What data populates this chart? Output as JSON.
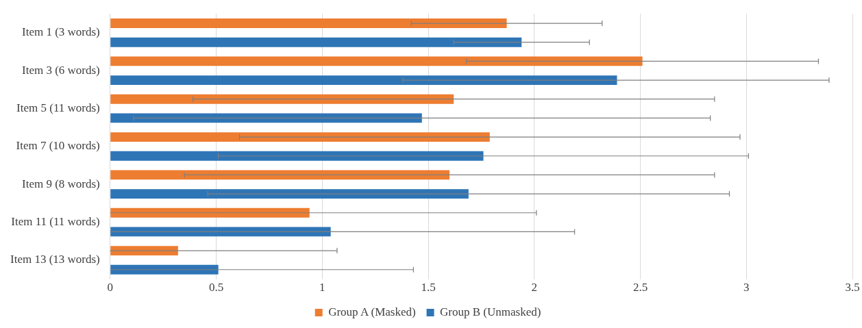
{
  "chart_data": {
    "type": "bar",
    "orientation": "horizontal",
    "categories": [
      "Item 1 (3 words)",
      "Item 3 (6 words)",
      "Item 5 (11 words)",
      "Item 7 (10 words)",
      "Item 9 (8 words)",
      "Item 11 (11 words)",
      "Item 13 (13 words)"
    ],
    "series": [
      {
        "name": "Group A (Masked)",
        "color": "#ed7d31",
        "values": [
          1.87,
          2.51,
          1.62,
          1.79,
          1.6,
          0.94,
          0.32
        ],
        "errors": [
          [
            1.42,
            2.32
          ],
          [
            1.68,
            3.34
          ],
          [
            0.39,
            2.85
          ],
          [
            0.61,
            2.97
          ],
          [
            0.35,
            2.85
          ],
          [
            0,
            2.01
          ],
          [
            0,
            1.07
          ]
        ]
      },
      {
        "name": "Group B (Unmasked)",
        "color": "#2e75b6",
        "values": [
          1.94,
          2.39,
          1.47,
          1.76,
          1.69,
          1.04,
          0.51
        ],
        "errors": [
          [
            1.62,
            2.26
          ],
          [
            1.38,
            3.39
          ],
          [
            0.11,
            2.83
          ],
          [
            0.51,
            3.01
          ],
          [
            0.46,
            2.92
          ],
          [
            0,
            2.19
          ],
          [
            0,
            1.43
          ]
        ]
      }
    ],
    "xlim": [
      0,
      3.5
    ],
    "xticks": [
      0,
      0.5,
      1,
      1.5,
      2,
      2.5,
      3,
      3.5
    ],
    "grid": "x",
    "legend": "bottom"
  }
}
